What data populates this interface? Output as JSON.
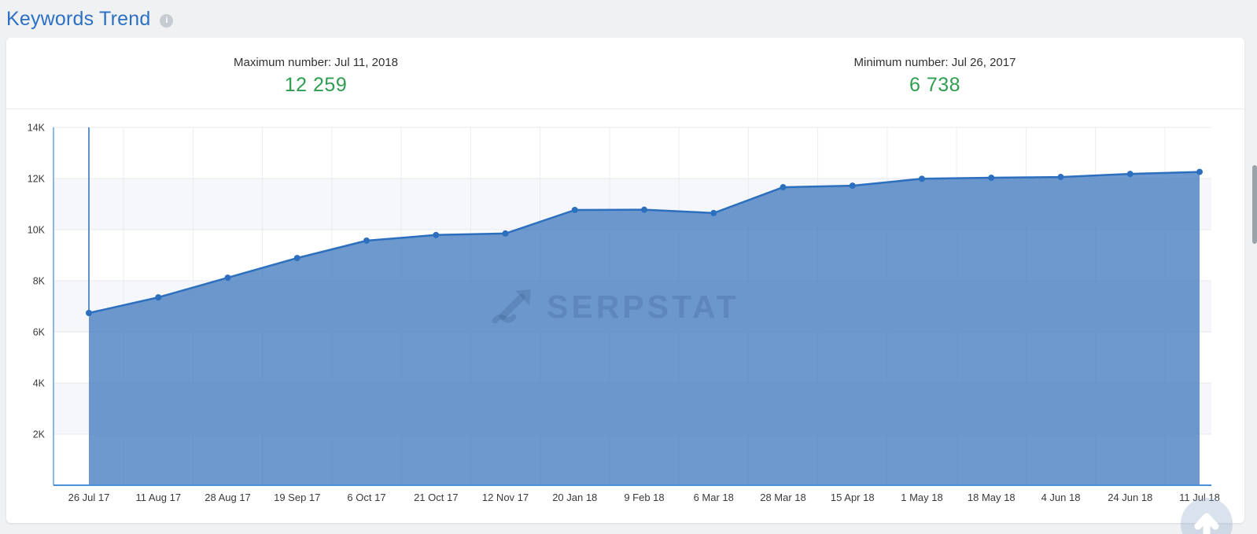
{
  "page": {
    "title": "Keywords Trend"
  },
  "header": {
    "max": {
      "label": "Maximum number: Jul 11, 2018",
      "value": "12 259"
    },
    "min": {
      "label": "Minimum number: Jul 26, 2017",
      "value": "6 738"
    },
    "value_color": "#2e9e50"
  },
  "watermark": {
    "text": "SERPSTAT"
  },
  "chart_data": {
    "type": "area",
    "title": "Keywords Trend",
    "categories": [
      "26 Jul 17",
      "11 Aug 17",
      "28 Aug 17",
      "19 Sep 17",
      "6 Oct 17",
      "21 Oct 17",
      "12 Nov 17",
      "20 Jan 18",
      "9 Feb 18",
      "6 Mar 18",
      "28 Mar 18",
      "15 Apr 18",
      "1 May 18",
      "18 May 18",
      "4 Jun 18",
      "24 Jun 18",
      "11 Jul 18"
    ],
    "values": [
      6738,
      7350,
      8120,
      8890,
      9570,
      9790,
      9850,
      10770,
      10780,
      10650,
      11660,
      11720,
      11990,
      12030,
      12060,
      12180,
      12259
    ],
    "ylim": [
      0,
      14000
    ],
    "yticks": [
      {
        "value": 2000,
        "label": "2K"
      },
      {
        "value": 4000,
        "label": "4K"
      },
      {
        "value": 6000,
        "label": "6K"
      },
      {
        "value": 8000,
        "label": "8K"
      },
      {
        "value": 10000,
        "label": "10K"
      },
      {
        "value": 12000,
        "label": "12K"
      },
      {
        "value": 14000,
        "label": "14K"
      }
    ],
    "grid": true,
    "legend": "none",
    "band_rows": [
      [
        10000,
        12000
      ],
      [
        6000,
        8000
      ],
      [
        2000,
        4000
      ]
    ],
    "colors": {
      "area_fill": "rgba(68,124,192,0.78)",
      "line": "#2d6fbf",
      "marker": "#2d6fbf",
      "h_grid": "#e6e9ed",
      "v_grid": "#e9edf1",
      "band": "#f5f7fa",
      "y_axis_line": "#66a0dd",
      "x_axis_line": "#4a90d9",
      "tick_text": "#3a3a3a"
    }
  }
}
